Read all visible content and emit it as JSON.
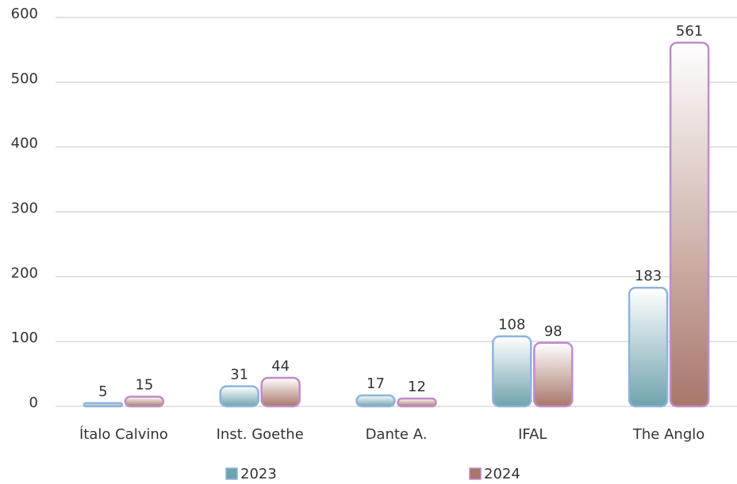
{
  "chart_data": {
    "type": "bar",
    "categories": [
      "Ítalo Calvino",
      "Inst. Goethe",
      "Dante A.",
      "IFAL",
      "The Anglo"
    ],
    "series": [
      {
        "name": "2023",
        "color": "#6fa3ad",
        "edgecolor": "#8fb4dc",
        "values": [
          5,
          31,
          17,
          108,
          183
        ]
      },
      {
        "name": "2024",
        "color": "#a8776a",
        "edgecolor": "#c08cc8",
        "values": [
          15,
          44,
          12,
          98,
          561
        ]
      }
    ],
    "ylim": [
      0,
      600
    ],
    "yticks": [
      0,
      100,
      200,
      300,
      400,
      500,
      600
    ],
    "grid": true,
    "legend": "bottom"
  }
}
